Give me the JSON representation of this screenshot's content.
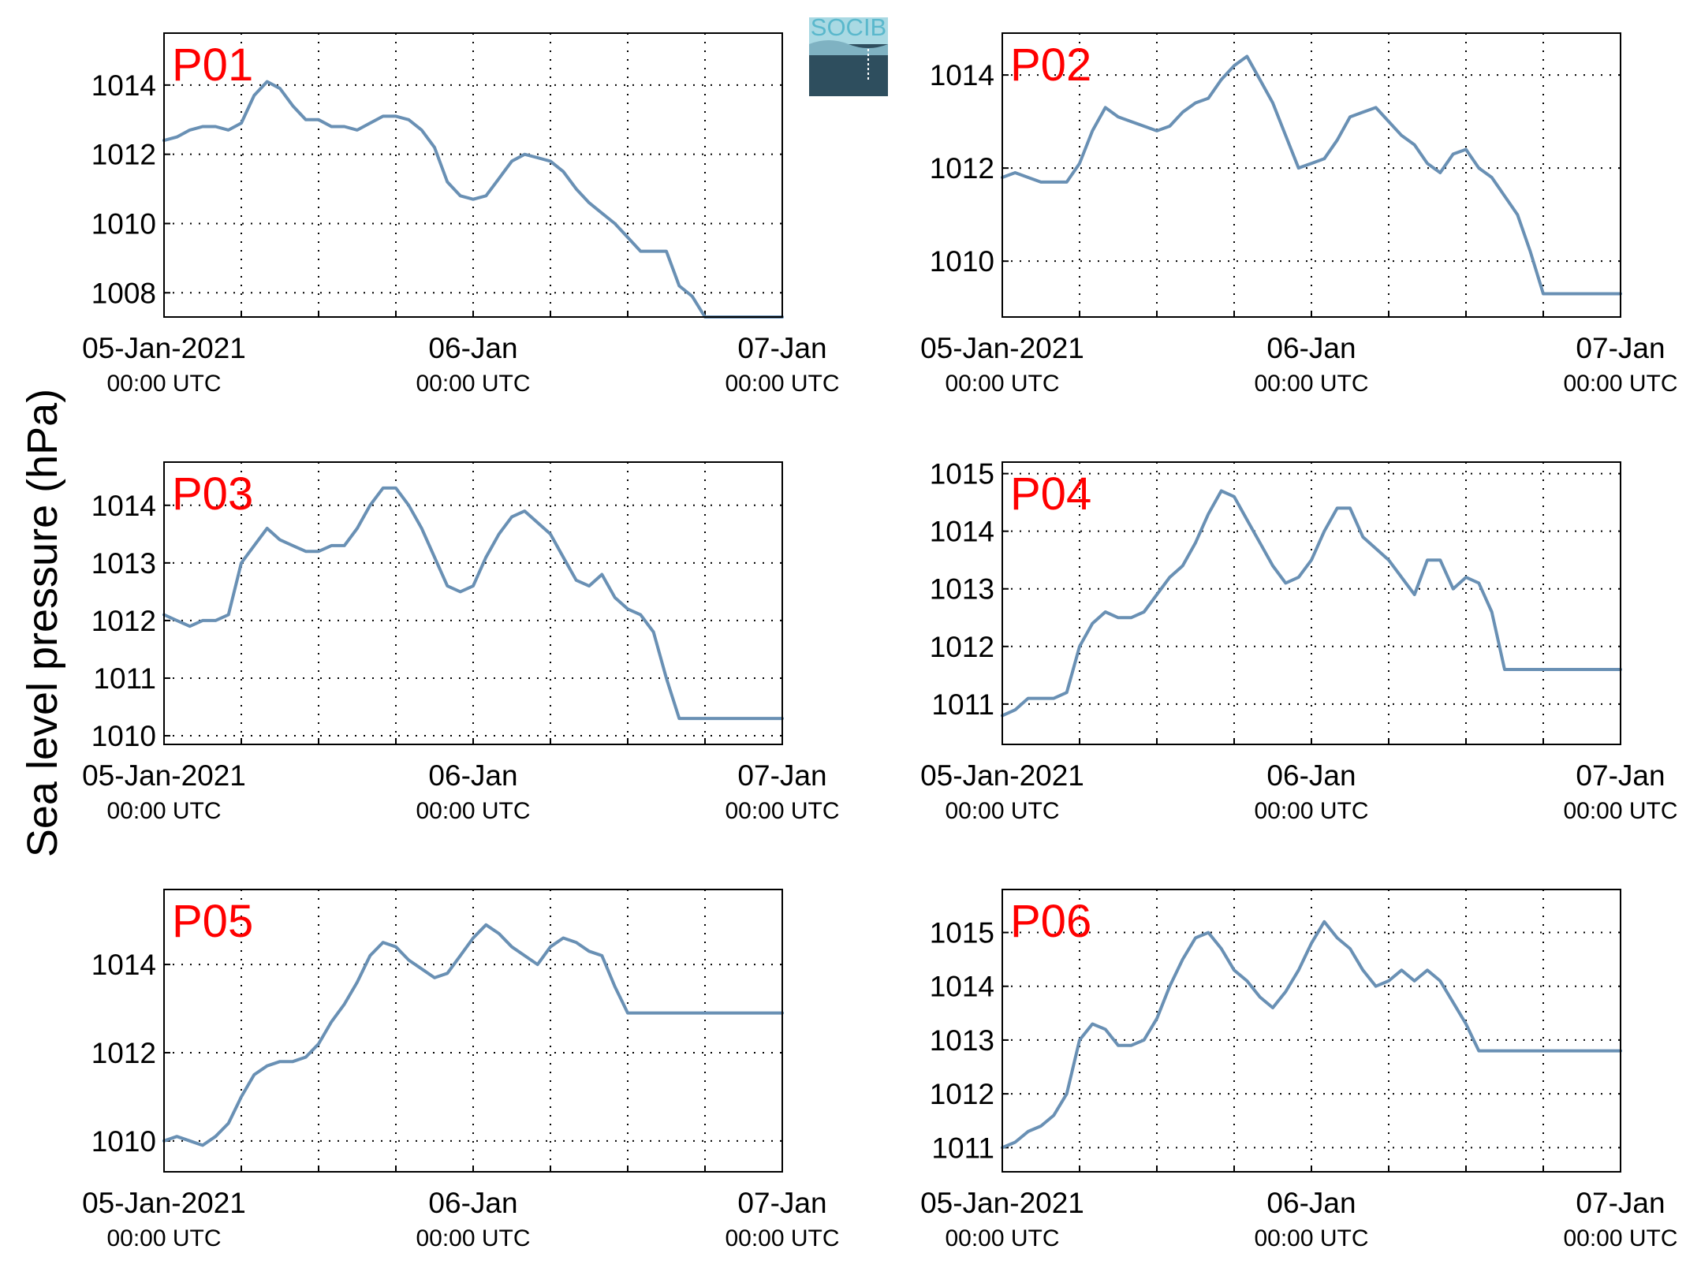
{
  "ylabel": "Sea level pressure (hPa)",
  "logo": {
    "text": "SOCIB"
  },
  "colors": {
    "line": "#6990b4",
    "panel_label": "#ff0000"
  },
  "chart_data": [
    {
      "type": "line",
      "label": "P01",
      "ylim": [
        1007.3,
        1015.5
      ],
      "yticks": [
        "1008",
        "1010",
        "1012",
        "1014"
      ],
      "ytick_values": [
        1008,
        1010,
        1012,
        1014
      ],
      "xlim": [
        "2021-01-05T00:00Z",
        "2021-01-07T00:00Z"
      ],
      "xticks": [
        {
          "label": "05-Jan-2021",
          "sub": "00:00 UTC"
        },
        {
          "label": "06-Jan",
          "sub": "00:00 UTC"
        },
        {
          "label": "07-Jan",
          "sub": "00:00 UTC"
        }
      ],
      "grid": true,
      "series": [
        {
          "x": [
            0,
            1,
            2,
            3,
            4,
            5,
            6,
            7,
            8,
            9,
            10,
            11,
            12,
            13,
            14,
            15,
            16,
            17,
            18,
            19,
            20,
            21,
            22,
            23,
            24,
            25,
            26,
            27,
            28,
            29,
            30,
            31,
            32,
            33,
            34,
            35,
            36,
            37,
            38,
            39,
            40,
            41,
            42,
            43,
            44,
            45,
            46,
            47,
            48
          ],
          "y": [
            1012.4,
            1012.5,
            1012.7,
            1012.8,
            1012.8,
            1012.7,
            1012.9,
            1013.7,
            1014.1,
            1013.9,
            1013.4,
            1013.0,
            1013.0,
            1012.8,
            1012.8,
            1012.7,
            1012.9,
            1013.1,
            1013.1,
            1013.0,
            1012.7,
            1012.2,
            1011.2,
            1010.8,
            1010.7,
            1010.8,
            1011.3,
            1011.8,
            1012.0,
            1011.9,
            1011.8,
            1011.5,
            1011.0,
            1010.6,
            1010.3,
            1010.0,
            1009.6,
            1009.2,
            1009.2,
            1009.2,
            1008.2,
            1007.9,
            1007.3,
            1007.3,
            1007.3,
            1007.3,
            1007.3,
            1007.3,
            1007.3
          ]
        }
      ]
    },
    {
      "type": "line",
      "label": "P02",
      "ylim": [
        1008.8,
        1014.9
      ],
      "yticks": [
        "1010",
        "1012",
        "1014"
      ],
      "ytick_values": [
        1010,
        1012,
        1014
      ],
      "xlim": [
        "2021-01-05T00:00Z",
        "2021-01-07T00:00Z"
      ],
      "xticks": [
        {
          "label": "05-Jan-2021",
          "sub": "00:00 UTC"
        },
        {
          "label": "06-Jan",
          "sub": "00:00 UTC"
        },
        {
          "label": "07-Jan",
          "sub": "00:00 UTC"
        }
      ],
      "grid": true,
      "series": [
        {
          "x": [
            0,
            1,
            2,
            3,
            4,
            5,
            6,
            7,
            8,
            9,
            10,
            11,
            12,
            13,
            14,
            15,
            16,
            17,
            18,
            19,
            20,
            21,
            22,
            23,
            24,
            25,
            26,
            27,
            28,
            29,
            30,
            31,
            32,
            33,
            34,
            35,
            36,
            37,
            38,
            39,
            40,
            41,
            42,
            43,
            44,
            45,
            46,
            47,
            48
          ],
          "y": [
            1011.8,
            1011.9,
            1011.8,
            1011.7,
            1011.7,
            1011.7,
            1012.1,
            1012.8,
            1013.3,
            1013.1,
            1013.0,
            1012.9,
            1012.8,
            1012.9,
            1013.2,
            1013.4,
            1013.5,
            1013.9,
            1014.2,
            1014.4,
            1013.9,
            1013.4,
            1012.7,
            1012.0,
            1012.1,
            1012.2,
            1012.6,
            1013.1,
            1013.2,
            1013.3,
            1013.0,
            1012.7,
            1012.5,
            1012.1,
            1011.9,
            1012.3,
            1012.4,
            1012.0,
            1011.8,
            1011.4,
            1011.0,
            1010.2,
            1009.3,
            1009.3,
            1009.3,
            1009.3,
            1009.3,
            1009.3,
            1009.3
          ]
        }
      ]
    },
    {
      "type": "line",
      "label": "P03",
      "ylim": [
        1009.85,
        1014.75
      ],
      "yticks": [
        "1010",
        "1011",
        "1012",
        "1013",
        "1014"
      ],
      "ytick_values": [
        1010,
        1011,
        1012,
        1013,
        1014
      ],
      "xlim": [
        "2021-01-05T00:00Z",
        "2021-01-07T00:00Z"
      ],
      "xticks": [
        {
          "label": "05-Jan-2021",
          "sub": "00:00 UTC"
        },
        {
          "label": "06-Jan",
          "sub": "00:00 UTC"
        },
        {
          "label": "07-Jan",
          "sub": "00:00 UTC"
        }
      ],
      "grid": true,
      "series": [
        {
          "x": [
            0,
            1,
            2,
            3,
            4,
            5,
            6,
            7,
            8,
            9,
            10,
            11,
            12,
            13,
            14,
            15,
            16,
            17,
            18,
            19,
            20,
            21,
            22,
            23,
            24,
            25,
            26,
            27,
            28,
            29,
            30,
            31,
            32,
            33,
            34,
            35,
            36,
            37,
            38,
            39,
            40,
            41,
            42,
            43,
            44,
            45,
            46,
            47,
            48
          ],
          "y": [
            1012.1,
            1012.0,
            1011.9,
            1012.0,
            1012.0,
            1012.1,
            1013.0,
            1013.3,
            1013.6,
            1013.4,
            1013.3,
            1013.2,
            1013.2,
            1013.3,
            1013.3,
            1013.6,
            1014.0,
            1014.3,
            1014.3,
            1014.0,
            1013.6,
            1013.1,
            1012.6,
            1012.5,
            1012.6,
            1013.1,
            1013.5,
            1013.8,
            1013.9,
            1013.7,
            1013.5,
            1013.1,
            1012.7,
            1012.6,
            1012.8,
            1012.4,
            1012.2,
            1012.1,
            1011.8,
            1011.0,
            1010.3,
            1010.3,
            1010.3,
            1010.3,
            1010.3,
            1010.3,
            1010.3,
            1010.3,
            1010.3
          ]
        }
      ]
    },
    {
      "type": "line",
      "label": "P04",
      "ylim": [
        1010.3,
        1015.2
      ],
      "yticks": [
        "1011",
        "1012",
        "1013",
        "1014",
        "1015"
      ],
      "ytick_values": [
        1011,
        1012,
        1013,
        1014,
        1015
      ],
      "xlim": [
        "2021-01-05T00:00Z",
        "2021-01-07T00:00Z"
      ],
      "xticks": [
        {
          "label": "05-Jan-2021",
          "sub": "00:00 UTC"
        },
        {
          "label": "06-Jan",
          "sub": "00:00 UTC"
        },
        {
          "label": "07-Jan",
          "sub": "00:00 UTC"
        }
      ],
      "grid": true,
      "series": [
        {
          "x": [
            0,
            1,
            2,
            3,
            4,
            5,
            6,
            7,
            8,
            9,
            10,
            11,
            12,
            13,
            14,
            15,
            16,
            17,
            18,
            19,
            20,
            21,
            22,
            23,
            24,
            25,
            26,
            27,
            28,
            29,
            30,
            31,
            32,
            33,
            34,
            35,
            36,
            37,
            38,
            39,
            40,
            41,
            42,
            43,
            44,
            45,
            46,
            47,
            48
          ],
          "y": [
            1010.8,
            1010.9,
            1011.1,
            1011.1,
            1011.1,
            1011.2,
            1012.0,
            1012.4,
            1012.6,
            1012.5,
            1012.5,
            1012.6,
            1012.9,
            1013.2,
            1013.4,
            1013.8,
            1014.3,
            1014.7,
            1014.6,
            1014.2,
            1013.8,
            1013.4,
            1013.1,
            1013.2,
            1013.5,
            1014.0,
            1014.4,
            1014.4,
            1013.9,
            1013.7,
            1013.5,
            1013.2,
            1012.9,
            1013.5,
            1013.5,
            1013.0,
            1013.2,
            1013.1,
            1012.6,
            1011.6,
            1011.6,
            1011.6,
            1011.6,
            1011.6,
            1011.6,
            1011.6,
            1011.6,
            1011.6,
            1011.6
          ]
        }
      ]
    },
    {
      "type": "line",
      "label": "P05",
      "ylim": [
        1009.3,
        1015.7
      ],
      "yticks": [
        "1010",
        "1012",
        "1014"
      ],
      "ytick_values": [
        1010,
        1012,
        1014
      ],
      "xlim": [
        "2021-01-05T00:00Z",
        "2021-01-07T00:00Z"
      ],
      "xticks": [
        {
          "label": "05-Jan-2021",
          "sub": "00:00 UTC"
        },
        {
          "label": "06-Jan",
          "sub": "00:00 UTC"
        },
        {
          "label": "07-Jan",
          "sub": "00:00 UTC"
        }
      ],
      "grid": true,
      "series": [
        {
          "x": [
            0,
            1,
            2,
            3,
            4,
            5,
            6,
            7,
            8,
            9,
            10,
            11,
            12,
            13,
            14,
            15,
            16,
            17,
            18,
            19,
            20,
            21,
            22,
            23,
            24,
            25,
            26,
            27,
            28,
            29,
            30,
            31,
            32,
            33,
            34,
            35,
            36,
            37,
            38,
            39,
            40,
            41,
            42,
            43,
            44,
            45,
            46,
            47,
            48
          ],
          "y": [
            1010.0,
            1010.1,
            1010.0,
            1009.9,
            1010.1,
            1010.4,
            1011.0,
            1011.5,
            1011.7,
            1011.8,
            1011.8,
            1011.9,
            1012.2,
            1012.7,
            1013.1,
            1013.6,
            1014.2,
            1014.5,
            1014.4,
            1014.1,
            1013.9,
            1013.7,
            1013.8,
            1014.2,
            1014.6,
            1014.9,
            1014.7,
            1014.4,
            1014.2,
            1014.0,
            1014.4,
            1014.6,
            1014.5,
            1014.3,
            1014.2,
            1013.5,
            1012.9,
            1012.9,
            1012.9,
            1012.9,
            1012.9,
            1012.9,
            1012.9,
            1012.9,
            1012.9,
            1012.9,
            1012.9,
            1012.9,
            1012.9
          ]
        }
      ]
    },
    {
      "type": "line",
      "label": "P06",
      "ylim": [
        1010.55,
        1015.8
      ],
      "yticks": [
        "1011",
        "1012",
        "1013",
        "1014",
        "1015"
      ],
      "ytick_values": [
        1011,
        1012,
        1013,
        1014,
        1015
      ],
      "xlim": [
        "2021-01-05T00:00Z",
        "2021-01-07T00:00Z"
      ],
      "xticks": [
        {
          "label": "05-Jan-2021",
          "sub": "00:00 UTC"
        },
        {
          "label": "06-Jan",
          "sub": "00:00 UTC"
        },
        {
          "label": "07-Jan",
          "sub": "00:00 UTC"
        }
      ],
      "grid": true,
      "series": [
        {
          "x": [
            0,
            1,
            2,
            3,
            4,
            5,
            6,
            7,
            8,
            9,
            10,
            11,
            12,
            13,
            14,
            15,
            16,
            17,
            18,
            19,
            20,
            21,
            22,
            23,
            24,
            25,
            26,
            27,
            28,
            29,
            30,
            31,
            32,
            33,
            34,
            35,
            36,
            37,
            38,
            39,
            40,
            41,
            42,
            43,
            44,
            45,
            46,
            47,
            48
          ],
          "y": [
            1011.0,
            1011.1,
            1011.3,
            1011.4,
            1011.6,
            1012.0,
            1013.0,
            1013.3,
            1013.2,
            1012.9,
            1012.9,
            1013.0,
            1013.4,
            1014.0,
            1014.5,
            1014.9,
            1015.0,
            1014.7,
            1014.3,
            1014.1,
            1013.8,
            1013.6,
            1013.9,
            1014.3,
            1014.8,
            1015.2,
            1014.9,
            1014.7,
            1014.3,
            1014.0,
            1014.1,
            1014.3,
            1014.1,
            1014.3,
            1014.1,
            1013.7,
            1013.3,
            1012.8,
            1012.8,
            1012.8,
            1012.8,
            1012.8,
            1012.8,
            1012.8,
            1012.8,
            1012.8,
            1012.8,
            1012.8,
            1012.8
          ]
        }
      ]
    }
  ]
}
